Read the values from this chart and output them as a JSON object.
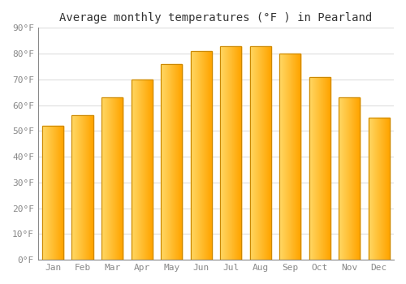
{
  "title": "Average monthly temperatures (°F ) in Pearland",
  "months": [
    "Jan",
    "Feb",
    "Mar",
    "Apr",
    "May",
    "Jun",
    "Jul",
    "Aug",
    "Sep",
    "Oct",
    "Nov",
    "Dec"
  ],
  "values": [
    52,
    56,
    63,
    70,
    76,
    81,
    83,
    83,
    80,
    71,
    63,
    55
  ],
  "bar_color_left": "#FFD966",
  "bar_color_right": "#FFA500",
  "bar_edge_color": "#CC8800",
  "ylim": [
    0,
    90
  ],
  "yticks": [
    0,
    10,
    20,
    30,
    40,
    50,
    60,
    70,
    80,
    90
  ],
  "ytick_labels": [
    "0°F",
    "10°F",
    "20°F",
    "30°F",
    "40°F",
    "50°F",
    "60°F",
    "70°F",
    "80°F",
    "90°F"
  ],
  "background_color": "#ffffff",
  "grid_color": "#dddddd",
  "title_fontsize": 10,
  "tick_fontsize": 8,
  "tick_color": "#888888",
  "font_family": "monospace",
  "bar_width": 0.72
}
